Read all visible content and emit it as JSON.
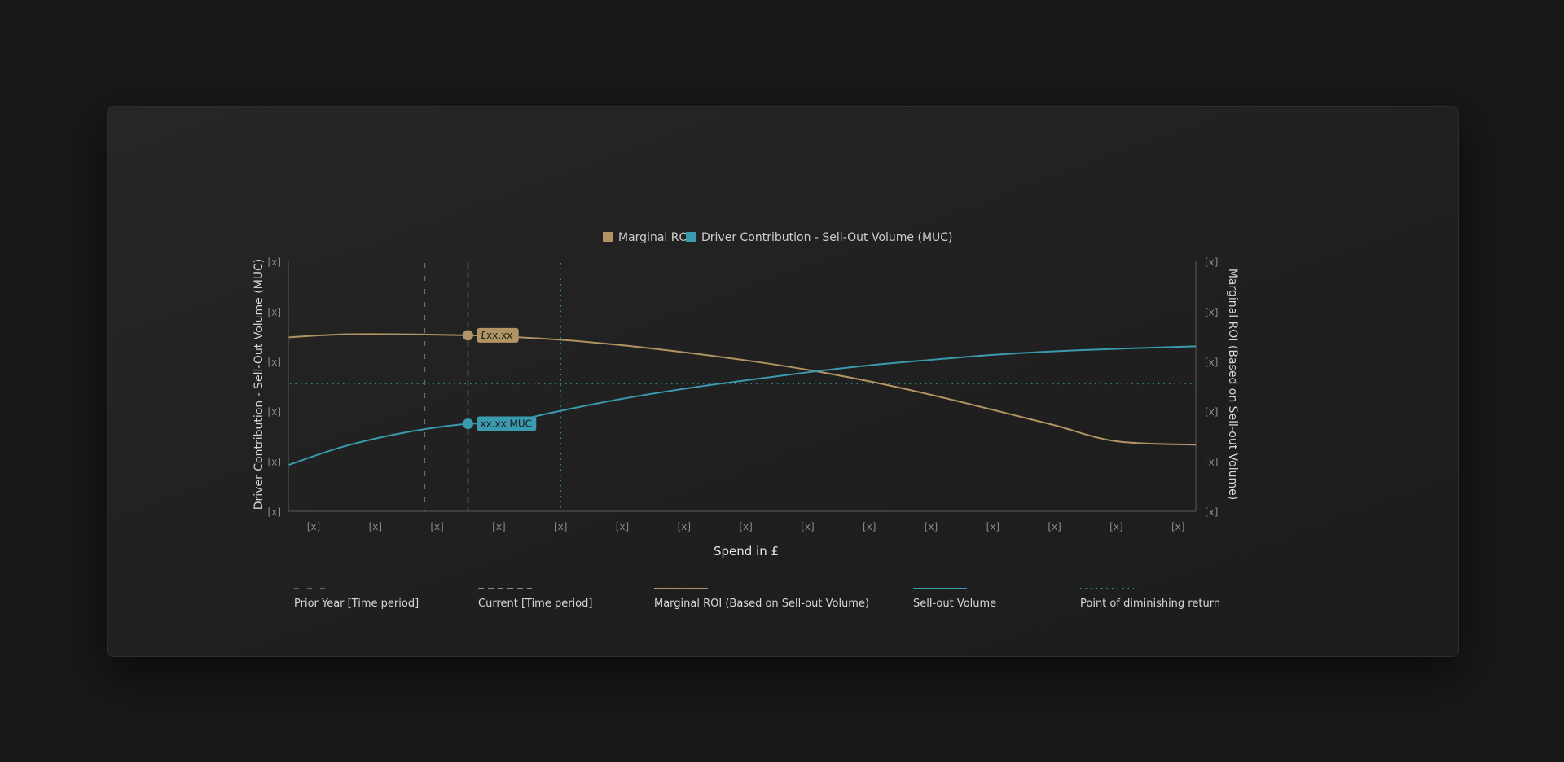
{
  "chart_data": {
    "type": "line",
    "title": "",
    "legend_top": [
      {
        "name": "Marginal ROI",
        "color": "#b09463"
      },
      {
        "name": "Driver Contribution - Sell-Out Volume (MUC)",
        "color": "#3a9aae"
      }
    ],
    "xlabel": "Spend in £",
    "ylabel_left": "Driver Contribution - Sell-Out Volume (MUC)",
    "ylabel_right": "Marginal ROI (Based on Sell-out Volume)",
    "x_ticks": [
      "[x]",
      "[x]",
      "[x]",
      "[x]",
      "[x]",
      "[x]",
      "[x]",
      "[x]",
      "[x]",
      "[x]",
      "[x]",
      "[x]",
      "[x]",
      "[x]",
      "[x]"
    ],
    "y_ticks_left": [
      "[x]",
      "[x]",
      "[x]",
      "[x]",
      "[x]",
      "[x]"
    ],
    "y_ticks_right": [
      "[x]",
      "[x]",
      "[x]",
      "[x]",
      "[x]",
      "[x]"
    ],
    "xlim": [
      0,
      14.8
    ],
    "ylim": [
      0,
      5
    ],
    "series": [
      {
        "name": "Marginal ROI (Based on Sell-out Volume)",
        "color": "#b09463",
        "x": [
          -0.4,
          0.5,
          1.5,
          2.5,
          3.0,
          4.0,
          5.0,
          6.0,
          7.0,
          8.0,
          9.0,
          10.0,
          11.0,
          12.0,
          13.0,
          14.3
        ],
        "y": [
          3.48,
          3.54,
          3.54,
          3.52,
          3.5,
          3.43,
          3.32,
          3.18,
          3.02,
          2.83,
          2.6,
          2.33,
          2.03,
          1.72,
          1.4,
          1.33
        ]
      },
      {
        "name": "Sell-out Volume",
        "color": "#3a9aae",
        "x": [
          -0.4,
          0.5,
          1.5,
          2.5,
          3.0,
          4.0,
          5.0,
          6.0,
          7.0,
          8.0,
          9.0,
          10.0,
          11.0,
          12.0,
          13.0,
          14.3
        ],
        "y": [
          0.93,
          1.3,
          1.58,
          1.75,
          1.75,
          2.01,
          2.25,
          2.45,
          2.62,
          2.78,
          2.92,
          3.03,
          3.13,
          3.2,
          3.25,
          3.3
        ]
      }
    ],
    "reference_lines": [
      {
        "name": "Prior Year [Time period]",
        "axis": "x",
        "value": 1.8,
        "style": "dashed-sparse",
        "color": "#6b6b6b"
      },
      {
        "name": "Current [Time period]",
        "axis": "x",
        "value": 2.5,
        "style": "dashed",
        "color": "#8a8a8a"
      },
      {
        "name": "Point of diminishing return",
        "axis": "x",
        "value": 4.0,
        "style": "dotted",
        "color": "#3a9aae"
      },
      {
        "name": "Point of diminishing return (level)",
        "axis": "y",
        "value": 2.55,
        "style": "dotted",
        "color": "#3a9aae"
      }
    ],
    "markers": [
      {
        "series": "Marginal ROI",
        "x": 2.5,
        "y": 3.52,
        "label": "£xx.xx",
        "color": "#b09463"
      },
      {
        "series": "Sell-out Volume",
        "x": 2.5,
        "y": 1.75,
        "label": "xx.xx MUC",
        "color": "#3a9aae"
      }
    ],
    "legend_bottom": [
      {
        "name": "Prior Year [Time period]",
        "style": "dashed-sparse",
        "color": "#6b6b6b"
      },
      {
        "name": "Current [Time period]",
        "style": "dashed",
        "color": "#8a8a8a"
      },
      {
        "name": "Marginal ROI (Based on Sell-out Volume)",
        "style": "solid",
        "color": "#b09463"
      },
      {
        "name": "Sell-out Volume",
        "style": "solid",
        "color": "#3a9aae"
      },
      {
        "name": "Point of diminishing return",
        "style": "dotted",
        "color": "#3a9aae"
      }
    ]
  }
}
